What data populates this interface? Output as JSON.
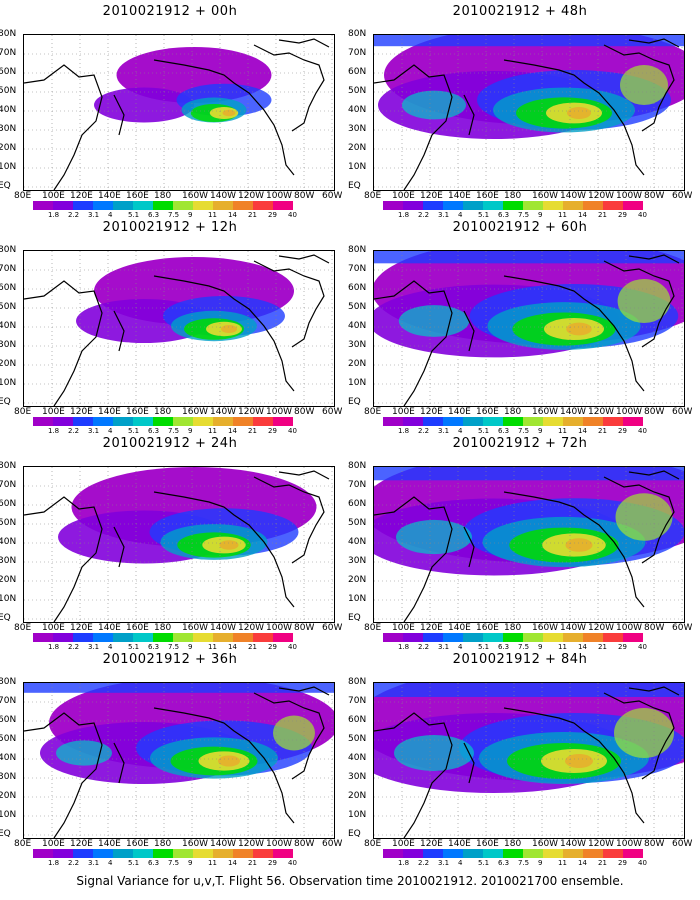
{
  "figure": {
    "caption": "Signal Variance for u,v,T. Flight 56. Observation time 2010021912. 2010021700 ensemble."
  },
  "panels": [
    {
      "title": "2010021912 + 00h",
      "intensity": 0.25
    },
    {
      "title": "2010021912 + 12h",
      "intensity": 0.4
    },
    {
      "title": "2010021912 + 24h",
      "intensity": 0.55
    },
    {
      "title": "2010021912 + 36h",
      "intensity": 0.7
    },
    {
      "title": "2010021912 + 48h",
      "intensity": 0.8
    },
    {
      "title": "2010021912 + 60h",
      "intensity": 0.88
    },
    {
      "title": "2010021912 + 72h",
      "intensity": 0.95
    },
    {
      "title": "2010021912 + 84h",
      "intensity": 1.0
    }
  ],
  "axes": {
    "lat_labels": [
      "80N",
      "70N",
      "60N",
      "50N",
      "40N",
      "30N",
      "20N",
      "10N",
      "EQ"
    ],
    "lon_labels": [
      "80E",
      "100E",
      "120E",
      "140E",
      "160E",
      "180",
      "160W",
      "140W",
      "120W",
      "100W",
      "80W",
      "60W"
    ]
  },
  "colorbar": {
    "levels": [
      "1.8",
      "2.2",
      "3.1",
      "4",
      "5.1",
      "6.3",
      "7.5",
      "9",
      "11",
      "14",
      "21",
      "29",
      "40"
    ],
    "colors": [
      "#a000c8",
      "#8200dc",
      "#1e3cff",
      "#0078ff",
      "#00a0c8",
      "#00c8c8",
      "#00dc00",
      "#a0e632",
      "#e6dc32",
      "#e6af2d",
      "#f08228",
      "#fa3c3c",
      "#f00082"
    ]
  }
}
